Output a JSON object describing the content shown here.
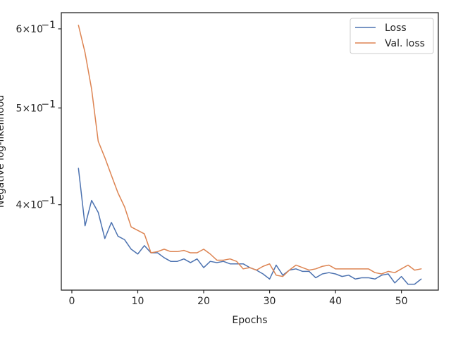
{
  "chart_data": {
    "type": "line",
    "xlabel": "Epochs",
    "ylabel": "Negative log-likelihood",
    "yscale": "log",
    "xlim": [
      -1.6,
      55.6
    ],
    "ylim": [
      0.3285,
      0.6228
    ],
    "xticks": [
      {
        "value": 0,
        "label": "0"
      },
      {
        "value": 10,
        "label": "10"
      },
      {
        "value": 20,
        "label": "20"
      },
      {
        "value": 30,
        "label": "30"
      },
      {
        "value": 40,
        "label": "40"
      },
      {
        "value": 50,
        "label": "50"
      }
    ],
    "yticks": [
      {
        "value": 0.4,
        "base": "4×10",
        "exp": "−1"
      },
      {
        "value": 0.5,
        "base": "5×10",
        "exp": "−1"
      },
      {
        "value": 0.6,
        "base": "6×10",
        "exp": "−1"
      }
    ],
    "legend": {
      "position": "top-right"
    },
    "grid": false,
    "x": [
      1,
      2,
      3,
      4,
      5,
      6,
      7,
      8,
      9,
      10,
      11,
      12,
      13,
      14,
      15,
      16,
      17,
      18,
      19,
      20,
      21,
      22,
      23,
      24,
      25,
      26,
      27,
      28,
      29,
      30,
      31,
      32,
      33,
      34,
      35,
      36,
      37,
      38,
      39,
      40,
      41,
      42,
      43,
      44,
      45,
      46,
      47,
      48,
      49,
      50,
      51,
      52,
      53
    ],
    "series": [
      {
        "name": "Loss",
        "color": "#4c72b0",
        "values": [
          0.435,
          0.381,
          0.404,
          0.393,
          0.37,
          0.384,
          0.372,
          0.369,
          0.361,
          0.357,
          0.364,
          0.358,
          0.358,
          0.354,
          0.351,
          0.351,
          0.353,
          0.35,
          0.353,
          0.346,
          0.351,
          0.35,
          0.351,
          0.349,
          0.349,
          0.349,
          0.346,
          0.344,
          0.341,
          0.337,
          0.348,
          0.34,
          0.344,
          0.345,
          0.343,
          0.343,
          0.338,
          0.341,
          0.342,
          0.341,
          0.339,
          0.34,
          0.337,
          0.338,
          0.338,
          0.337,
          0.34,
          0.341,
          0.334,
          0.339,
          0.333,
          0.333,
          0.337
        ]
      },
      {
        "name": "Val. loss",
        "color": "#dd8452",
        "values": [
          0.605,
          0.568,
          0.522,
          0.463,
          0.446,
          0.428,
          0.411,
          0.398,
          0.38,
          0.377,
          0.374,
          0.358,
          0.359,
          0.361,
          0.359,
          0.359,
          0.36,
          0.358,
          0.358,
          0.361,
          0.357,
          0.352,
          0.352,
          0.353,
          0.351,
          0.345,
          0.346,
          0.344,
          0.347,
          0.349,
          0.34,
          0.339,
          0.344,
          0.348,
          0.346,
          0.344,
          0.345,
          0.347,
          0.348,
          0.345,
          0.345,
          0.345,
          0.345,
          0.345,
          0.345,
          0.342,
          0.341,
          0.343,
          0.342,
          0.345,
          0.348,
          0.344,
          0.345
        ]
      }
    ]
  }
}
